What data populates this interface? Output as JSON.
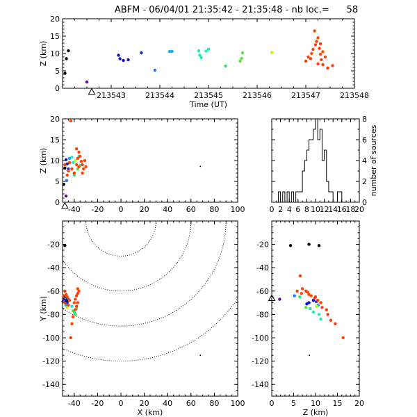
{
  "title": "ABFM - 06/04/01 21:35:42 - 21:35:48 - nb loc.=      58",
  "chart_data": [
    {
      "id": "time",
      "type": "scatter",
      "xlabel": "Time (UT)",
      "ylabel": "Z (km)",
      "xlim": [
        213542,
        213548
      ],
      "ylim": [
        0,
        20
      ],
      "xticks": [
        "213543",
        "213544",
        "213545",
        "213546",
        "213547",
        "213548"
      ],
      "yticks": [
        "0",
        "5",
        "10",
        "15",
        "20"
      ],
      "station_marker": {
        "x": 213542.6,
        "y": -0.2
      },
      "points": [
        {
          "x": 213542.05,
          "y": 4.3,
          "c": "#000000"
        },
        {
          "x": 213542.08,
          "y": 8.5,
          "c": "#000000"
        },
        {
          "x": 213542.12,
          "y": 10.8,
          "c": "#000000"
        },
        {
          "x": 213542.5,
          "y": 1.8,
          "c": "#6a00a8"
        },
        {
          "x": 213543.15,
          "y": 9.5,
          "c": "#1010d0"
        },
        {
          "x": 213543.18,
          "y": 8.5,
          "c": "#1010d0"
        },
        {
          "x": 213543.25,
          "y": 8.0,
          "c": "#1010d0"
        },
        {
          "x": 213543.35,
          "y": 8.2,
          "c": "#1010d0"
        },
        {
          "x": 213543.62,
          "y": 10.2,
          "c": "#1030e0"
        },
        {
          "x": 213543.9,
          "y": 5.2,
          "c": "#1878ff"
        },
        {
          "x": 213544.2,
          "y": 10.6,
          "c": "#10a8f0"
        },
        {
          "x": 213544.25,
          "y": 10.6,
          "c": "#10a8f0"
        },
        {
          "x": 213544.8,
          "y": 10.8,
          "c": "#20e8b8"
        },
        {
          "x": 213544.82,
          "y": 9.5,
          "c": "#20e8b8"
        },
        {
          "x": 213544.85,
          "y": 8.8,
          "c": "#20e8b8"
        },
        {
          "x": 213544.95,
          "y": 10.7,
          "c": "#20e8b8"
        },
        {
          "x": 213545.0,
          "y": 11.2,
          "c": "#20e8b8"
        },
        {
          "x": 213545.35,
          "y": 6.4,
          "c": "#30e860"
        },
        {
          "x": 213545.65,
          "y": 7.8,
          "c": "#58e040"
        },
        {
          "x": 213545.68,
          "y": 8.6,
          "c": "#58e040"
        },
        {
          "x": 213545.7,
          "y": 10.2,
          "c": "#58e040"
        },
        {
          "x": 213546.3,
          "y": 10.3,
          "c": "#c8f020"
        },
        {
          "x": 213547.0,
          "y": 7.8,
          "c": "#ff4000"
        },
        {
          "x": 213547.05,
          "y": 9.0,
          "c": "#ff4000"
        },
        {
          "x": 213547.1,
          "y": 8.5,
          "c": "#ff4000"
        },
        {
          "x": 213547.12,
          "y": 10.0,
          "c": "#ff4000"
        },
        {
          "x": 213547.15,
          "y": 11.2,
          "c": "#ff4000"
        },
        {
          "x": 213547.18,
          "y": 16.5,
          "c": "#ff4000"
        },
        {
          "x": 213547.2,
          "y": 12.5,
          "c": "#ff4000"
        },
        {
          "x": 213547.22,
          "y": 13.5,
          "c": "#ff4000"
        },
        {
          "x": 213547.25,
          "y": 14.5,
          "c": "#ff4000"
        },
        {
          "x": 213547.25,
          "y": 7.0,
          "c": "#ff4000"
        },
        {
          "x": 213547.28,
          "y": 11.5,
          "c": "#ff4000"
        },
        {
          "x": 213547.3,
          "y": 12.8,
          "c": "#ff4000"
        },
        {
          "x": 213547.3,
          "y": 9.8,
          "c": "#ff4000"
        },
        {
          "x": 213547.32,
          "y": 8.2,
          "c": "#ff4000"
        },
        {
          "x": 213547.35,
          "y": 10.5,
          "c": "#ff4000"
        },
        {
          "x": 213547.35,
          "y": 6.8,
          "c": "#ff4000"
        },
        {
          "x": 213547.4,
          "y": 9.0,
          "c": "#ff4000"
        },
        {
          "x": 213547.45,
          "y": 5.8,
          "c": "#ff4000"
        },
        {
          "x": 213547.55,
          "y": 6.5,
          "c": "#ff4000"
        }
      ]
    },
    {
      "id": "xz",
      "type": "scatter",
      "ylabel": "Z (km)",
      "xlim": [
        -50,
        100
      ],
      "ylim": [
        0,
        20
      ],
      "xticks": [
        "-40",
        "-20",
        "0",
        "20",
        "40",
        "60",
        "80",
        "100"
      ],
      "yticks": [
        "0",
        "5",
        "10",
        "15",
        "20"
      ],
      "station_marker": {
        "x": -48,
        "y": -0.2
      },
      "points": [
        {
          "x": -49,
          "y": 4.3,
          "c": "#000000"
        },
        {
          "x": -48,
          "y": 8.2,
          "c": "#000000"
        },
        {
          "x": -47,
          "y": 1.5,
          "c": "#6a00a8"
        },
        {
          "x": -47,
          "y": 10.2,
          "c": "#1010d0"
        },
        {
          "x": -46,
          "y": 9.2,
          "c": "#1010d0"
        },
        {
          "x": -45,
          "y": 8.0,
          "c": "#1030e0"
        },
        {
          "x": -46.5,
          "y": 5.2,
          "c": "#1878ff"
        },
        {
          "x": -44,
          "y": 10.5,
          "c": "#10a8f0"
        },
        {
          "x": -42,
          "y": 10.8,
          "c": "#20e8b8"
        },
        {
          "x": -41,
          "y": 9.5,
          "c": "#20e8b8"
        },
        {
          "x": -35,
          "y": 8.8,
          "c": "#20e8b8"
        },
        {
          "x": -36,
          "y": 11.0,
          "c": "#20e8b8"
        },
        {
          "x": -40,
          "y": 6.5,
          "c": "#30e860"
        },
        {
          "x": -37,
          "y": 8.0,
          "c": "#58e040"
        },
        {
          "x": -39,
          "y": 10.0,
          "c": "#c8f020"
        },
        {
          "x": -43,
          "y": 19.5,
          "c": "#ff4000"
        },
        {
          "x": -38,
          "y": 12.8,
          "c": "#ff4000"
        },
        {
          "x": -36,
          "y": 12.0,
          "c": "#ff4000"
        },
        {
          "x": -35,
          "y": 11.0,
          "c": "#ff4000"
        },
        {
          "x": -37,
          "y": 10.5,
          "c": "#ff4000"
        },
        {
          "x": -34,
          "y": 9.8,
          "c": "#ff4000"
        },
        {
          "x": -33,
          "y": 9.0,
          "c": "#ff4000"
        },
        {
          "x": -36,
          "y": 8.5,
          "c": "#ff4000"
        },
        {
          "x": -32,
          "y": 8.0,
          "c": "#ff4000"
        },
        {
          "x": -30,
          "y": 8.5,
          "c": "#ff4000"
        },
        {
          "x": -31,
          "y": 10.0,
          "c": "#ff4000"
        },
        {
          "x": -38,
          "y": 9.0,
          "c": "#ff4000"
        },
        {
          "x": -40,
          "y": 7.0,
          "c": "#ff4000"
        },
        {
          "x": -42,
          "y": 8.0,
          "c": "#ff4000"
        },
        {
          "x": -44,
          "y": 9.5,
          "c": "#ff4000"
        },
        {
          "x": -45,
          "y": 7.5,
          "c": "#ff4000"
        },
        {
          "x": -48,
          "y": 9.0,
          "c": "#ff4000"
        },
        {
          "x": -46,
          "y": 6.5,
          "c": "#ff4000"
        },
        {
          "x": -33,
          "y": 7.0,
          "c": "#ff4000"
        },
        {
          "x": 68,
          "y": 8.6,
          "c": "#000000",
          "small": true
        }
      ]
    },
    {
      "id": "hist",
      "type": "histogram",
      "ylabel": "number of sources",
      "xlim": [
        0,
        20
      ],
      "ylim": [
        0,
        8
      ],
      "xticks": [
        "0",
        "2",
        "4",
        "6",
        "8",
        "10",
        "12",
        "14",
        "16",
        "18",
        "20"
      ],
      "yticks": [
        "0",
        "2",
        "4",
        "6",
        "8"
      ],
      "bin_start": 0,
      "bin_width": 0.5,
      "counts": [
        0,
        0,
        0,
        1,
        0,
        1,
        0,
        1,
        0,
        1,
        0,
        1,
        1,
        1,
        3,
        4,
        5,
        6,
        6,
        7,
        8,
        6,
        7,
        4,
        5,
        2,
        1,
        1,
        0,
        0,
        1,
        1,
        0,
        0,
        0,
        0,
        0,
        0,
        0,
        0
      ]
    },
    {
      "id": "xy",
      "type": "scatter",
      "xlabel": "X (km)",
      "ylabel": "Y (km)",
      "xlim": [
        -50,
        100
      ],
      "ylim": [
        -150,
        0
      ],
      "xticks": [
        "-40",
        "-20",
        "0",
        "20",
        "40",
        "60",
        "80",
        "100"
      ],
      "yticks": [
        "-20",
        "-40",
        "-60",
        "-80",
        "-100",
        "-120",
        "-140"
      ],
      "station_marker": {
        "x": -48,
        "y": -67
      },
      "range_rings_km": [
        30,
        60,
        90,
        120
      ],
      "points": [
        {
          "x": -48,
          "y": -21,
          "c": "#000000"
        },
        {
          "x": -49,
          "y": -67,
          "c": "#6a00a8"
        },
        {
          "x": -48,
          "y": -70,
          "c": "#1010d0"
        },
        {
          "x": -47,
          "y": -68,
          "c": "#1010d0"
        },
        {
          "x": -46,
          "y": -70,
          "c": "#1030e0"
        },
        {
          "x": -45,
          "y": -67,
          "c": "#1878ff"
        },
        {
          "x": -47,
          "y": -72,
          "c": "#10a8f0"
        },
        {
          "x": -40,
          "y": -78,
          "c": "#20e8b8"
        },
        {
          "x": -38,
          "y": -75,
          "c": "#20e8b8"
        },
        {
          "x": -42,
          "y": -73,
          "c": "#20e8b8"
        },
        {
          "x": -39,
          "y": -80,
          "c": "#30e860"
        },
        {
          "x": -41,
          "y": -77,
          "c": "#58e040"
        },
        {
          "x": -46,
          "y": -74,
          "c": "#c8f020"
        },
        {
          "x": -49,
          "y": -64,
          "c": "#ff4000"
        },
        {
          "x": -48,
          "y": -60,
          "c": "#ff4000"
        },
        {
          "x": -47,
          "y": -63,
          "c": "#ff4000"
        },
        {
          "x": -46,
          "y": -65,
          "c": "#ff4000"
        },
        {
          "x": -44,
          "y": -68,
          "c": "#ff4000"
        },
        {
          "x": -37,
          "y": -58,
          "c": "#ff4000"
        },
        {
          "x": -36,
          "y": -60,
          "c": "#ff4000"
        },
        {
          "x": -37,
          "y": -62,
          "c": "#ff4000"
        },
        {
          "x": -38,
          "y": -64,
          "c": "#ff4000"
        },
        {
          "x": -39,
          "y": -67,
          "c": "#ff4000"
        },
        {
          "x": -40,
          "y": -70,
          "c": "#ff4000"
        },
        {
          "x": -37,
          "y": -70,
          "c": "#ff4000"
        },
        {
          "x": -38,
          "y": -73,
          "c": "#ff4000"
        },
        {
          "x": -39,
          "y": -76,
          "c": "#ff4000"
        },
        {
          "x": -41,
          "y": -82,
          "c": "#ff4000"
        },
        {
          "x": -42,
          "y": -88,
          "c": "#ff4000"
        },
        {
          "x": -43,
          "y": -100,
          "c": "#ff4000"
        },
        {
          "x": -48,
          "y": -70,
          "c": "#ff4000"
        },
        {
          "x": -45,
          "y": -72,
          "c": "#ff4000"
        },
        {
          "x": 68,
          "y": -115,
          "c": "#000000",
          "small": true
        }
      ]
    },
    {
      "id": "zy",
      "type": "scatter",
      "xlabel": "Z (km)",
      "xlim": [
        0,
        20
      ],
      "ylim": [
        -150,
        0
      ],
      "xticks": [
        "0",
        "5",
        "10",
        "15",
        "20"
      ],
      "yticks": [
        "-20",
        "-40",
        "-60",
        "-80",
        "-100",
        "-120",
        "-140"
      ],
      "station_marker": {
        "x": 0,
        "y": -66
      },
      "points": [
        {
          "x": 4.3,
          "y": -21,
          "c": "#000000"
        },
        {
          "x": 8.5,
          "y": -20,
          "c": "#000000"
        },
        {
          "x": 10.8,
          "y": -21,
          "c": "#000000"
        },
        {
          "x": 1.8,
          "y": -67,
          "c": "#6a00a8"
        },
        {
          "x": 9.5,
          "y": -68,
          "c": "#1010d0"
        },
        {
          "x": 8.5,
          "y": -70,
          "c": "#1010d0"
        },
        {
          "x": 8.0,
          "y": -71,
          "c": "#1010d0"
        },
        {
          "x": 10.2,
          "y": -69,
          "c": "#1030e0"
        },
        {
          "x": 5.2,
          "y": -64,
          "c": "#1878ff"
        },
        {
          "x": 10.6,
          "y": -72,
          "c": "#10a8f0"
        },
        {
          "x": 10.8,
          "y": -80,
          "c": "#20e8b8"
        },
        {
          "x": 9.5,
          "y": -78,
          "c": "#20e8b8"
        },
        {
          "x": 8.8,
          "y": -75,
          "c": "#20e8b8"
        },
        {
          "x": 11.2,
          "y": -84,
          "c": "#20e8b8"
        },
        {
          "x": 6.4,
          "y": -65,
          "c": "#30e860"
        },
        {
          "x": 7.8,
          "y": -74,
          "c": "#58e040"
        },
        {
          "x": 10.2,
          "y": -73,
          "c": "#c8f020"
        },
        {
          "x": 6.5,
          "y": -47,
          "c": "#ff4000"
        },
        {
          "x": 7.0,
          "y": -58,
          "c": "#ff4000"
        },
        {
          "x": 7.8,
          "y": -60,
          "c": "#ff4000"
        },
        {
          "x": 8.2,
          "y": -61,
          "c": "#ff4000"
        },
        {
          "x": 8.5,
          "y": -63,
          "c": "#ff4000"
        },
        {
          "x": 9.0,
          "y": -64,
          "c": "#ff4000"
        },
        {
          "x": 9.8,
          "y": -66,
          "c": "#ff4000"
        },
        {
          "x": 10.0,
          "y": -65,
          "c": "#ff4000"
        },
        {
          "x": 10.5,
          "y": -68,
          "c": "#ff4000"
        },
        {
          "x": 11.2,
          "y": -70,
          "c": "#ff4000"
        },
        {
          "x": 11.5,
          "y": -74,
          "c": "#ff4000"
        },
        {
          "x": 12.5,
          "y": -76,
          "c": "#ff4000"
        },
        {
          "x": 12.8,
          "y": -80,
          "c": "#ff4000"
        },
        {
          "x": 13.5,
          "y": -85,
          "c": "#ff4000"
        },
        {
          "x": 14.5,
          "y": -88,
          "c": "#ff4000"
        },
        {
          "x": 16.3,
          "y": -100,
          "c": "#ff4000"
        },
        {
          "x": 6.8,
          "y": -62,
          "c": "#ff4000"
        },
        {
          "x": 5.8,
          "y": -60,
          "c": "#ff4000"
        },
        {
          "x": 8.6,
          "y": -115,
          "c": "#000000",
          "small": true
        }
      ]
    }
  ]
}
